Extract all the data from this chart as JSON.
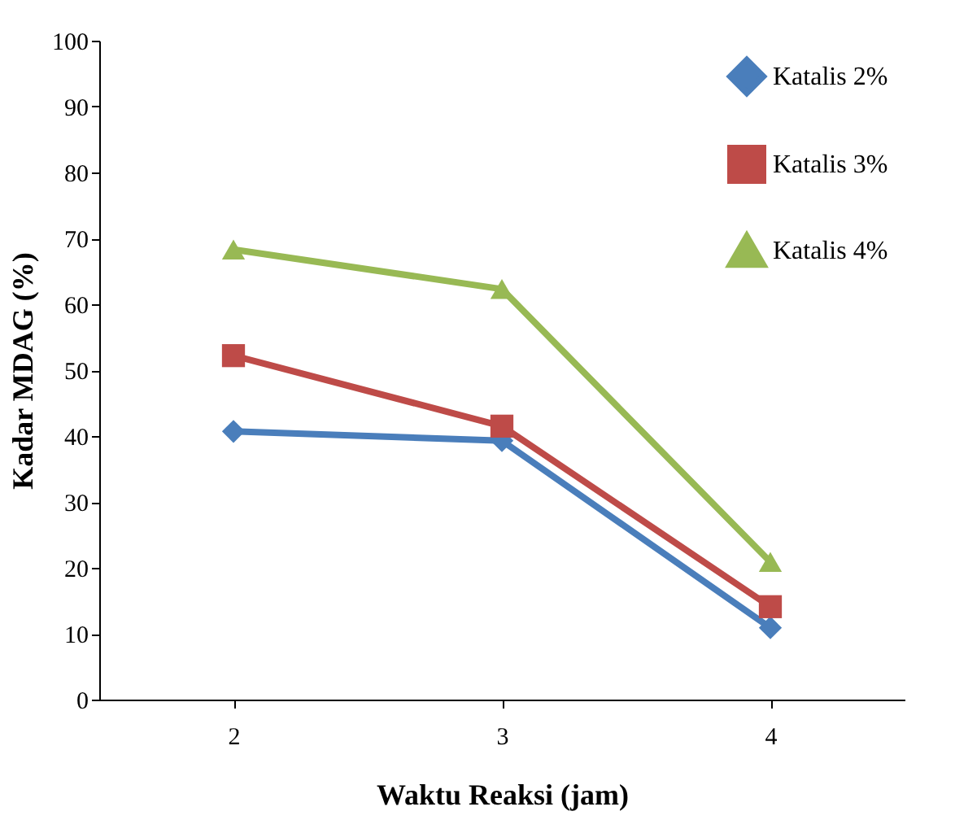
{
  "chart_data": {
    "type": "line",
    "xlabel": "Waktu Reaksi (jam)",
    "ylabel": "Kadar MDAG (%)",
    "categories": [
      "2",
      "3",
      "4"
    ],
    "series": [
      {
        "name": "Katalis 2%",
        "color": "#4a7ebb",
        "marker": "diamond",
        "values": [
          40.7,
          39.3,
          10.9
        ]
      },
      {
        "name": "Katalis 3%",
        "color": "#be4b48",
        "marker": "square",
        "values": [
          52.2,
          41.5,
          14.1
        ]
      },
      {
        "name": "Katalis 4%",
        "color": "#98b954",
        "marker": "triangle",
        "values": [
          68.3,
          62.3,
          20.9
        ]
      }
    ],
    "ylim": [
      0,
      100
    ],
    "yticks": [
      0,
      10,
      20,
      30,
      40,
      50,
      60,
      70,
      80,
      90,
      100
    ],
    "grid": false,
    "legend": "top right"
  }
}
